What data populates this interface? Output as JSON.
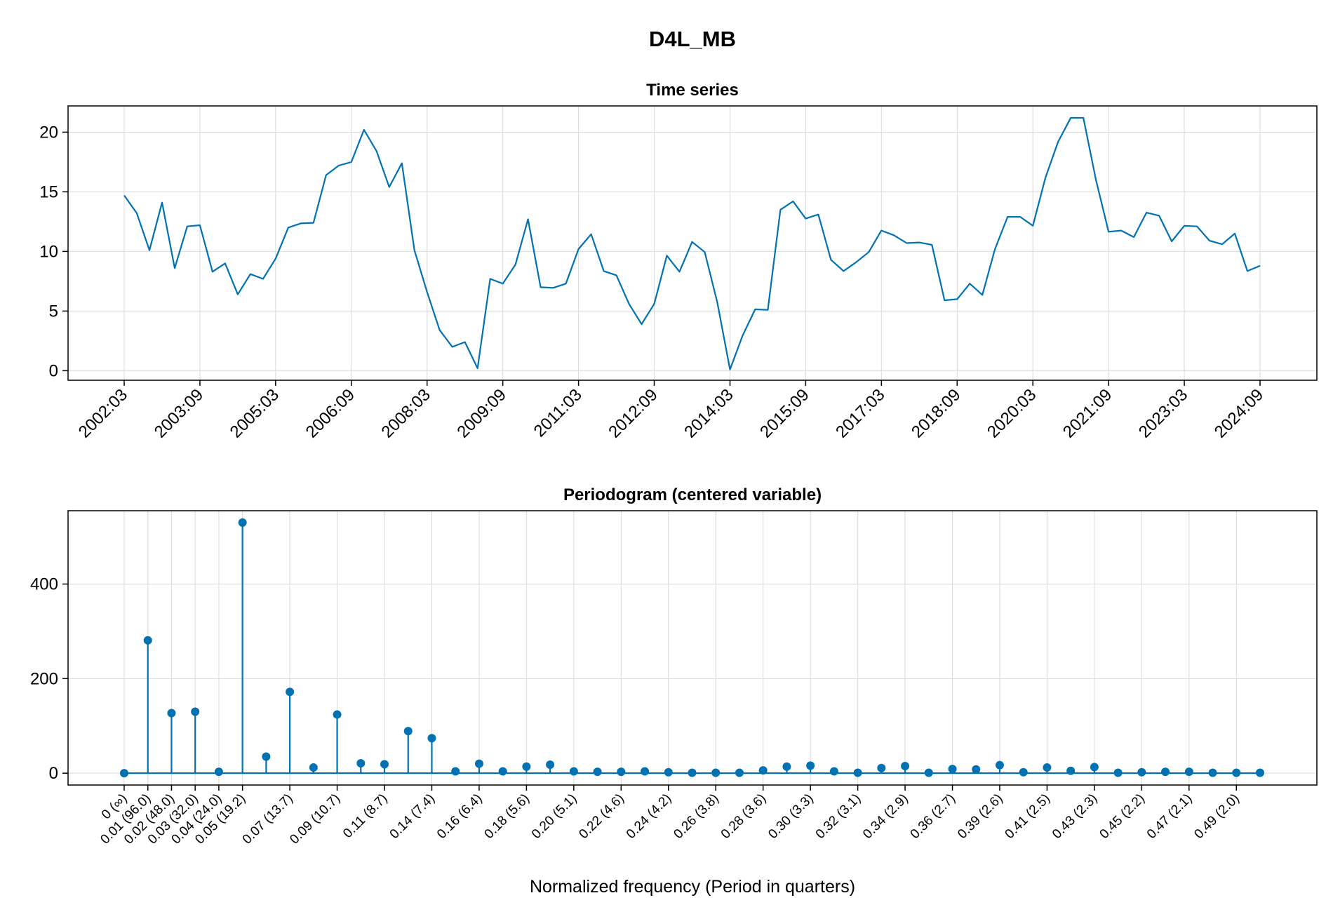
{
  "figure_title": "D4L_MB",
  "colors": {
    "series": "#0072b2",
    "grid": "#d9d9d9",
    "frame": "#000000"
  },
  "chart_data": [
    {
      "type": "line",
      "title": "Time series",
      "xlabel": "",
      "ylabel": "",
      "ylim": [
        -0.8,
        22.2
      ],
      "yticks": [
        0,
        5,
        10,
        15,
        20
      ],
      "grid": true,
      "legend": "none",
      "xticks": [
        "2002:03",
        "2003:09",
        "2005:03",
        "2006:09",
        "2008:03",
        "2009:09",
        "2011:03",
        "2012:09",
        "2014:03",
        "2015:09",
        "2017:03",
        "2018:09",
        "2020:03",
        "2021:09",
        "2023:03",
        "2024:09"
      ],
      "x_start": "2002:03",
      "x_frequency": "quarterly",
      "values": [
        14.7,
        13.2,
        10.1,
        14.1,
        8.6,
        12.1,
        12.2,
        8.3,
        9.0,
        6.4,
        8.1,
        7.7,
        9.4,
        12.0,
        12.35,
        12.4,
        16.4,
        17.2,
        17.5,
        20.2,
        18.4,
        15.4,
        17.4,
        10.1,
        6.6,
        3.4,
        2.0,
        2.4,
        0.2,
        7.7,
        7.3,
        8.9,
        12.7,
        7.0,
        6.95,
        7.3,
        10.2,
        11.45,
        8.35,
        8.0,
        5.6,
        3.9,
        5.6,
        9.65,
        8.3,
        10.8,
        9.95,
        5.7,
        0.1,
        2.95,
        5.15,
        5.1,
        13.5,
        14.2,
        12.75,
        13.1,
        9.3,
        8.35,
        9.1,
        9.95,
        11.75,
        11.35,
        10.7,
        10.75,
        10.55,
        5.9,
        6.0,
        7.3,
        6.35,
        10.2,
        12.9,
        12.9,
        12.15,
        16.2,
        19.2,
        21.2,
        21.2,
        16.0,
        11.65,
        11.75,
        11.2,
        13.25,
        13.0,
        10.85,
        12.15,
        12.1,
        10.9,
        10.6,
        11.5,
        8.35,
        8.8
      ]
    },
    {
      "type": "stem",
      "title": "Periodogram (centered variable)",
      "xlabel": "Normalized frequency (Period in quarters)",
      "ylabel": "",
      "ylim": [
        -25,
        555
      ],
      "yticks": [
        0,
        200,
        400
      ],
      "grid": true,
      "legend": "none",
      "xticks": [
        "0 (∞)",
        "0.01 (96.0)",
        "0.02 (48.0)",
        "0.03 (32.0)",
        "0.04 (24.0)",
        "0.05 (19.2)",
        "0.07 (13.7)",
        "0.09 (10.7)",
        "0.11 (8.7)",
        "0.14 (7.4)",
        "0.16 (6.4)",
        "0.18 (5.6)",
        "0.20 (5.1)",
        "0.22 (4.6)",
        "0.24 (4.2)",
        "0.26 (3.8)",
        "0.28 (3.6)",
        "0.30 (3.3)",
        "0.32 (3.1)",
        "0.34 (2.9)",
        "0.36 (2.7)",
        "0.39 (2.6)",
        "0.41 (2.5)",
        "0.43 (2.3)",
        "0.45 (2.2)",
        "0.47 (2.1)",
        "0.49 (2.0)"
      ],
      "xtick_index": [
        0,
        1,
        2,
        3,
        4,
        5,
        7,
        9,
        11,
        13,
        15,
        17,
        19,
        21,
        23,
        25,
        27,
        29,
        31,
        33,
        35,
        37,
        39,
        41,
        43,
        45,
        47
      ],
      "values": [
        0,
        281,
        127,
        130,
        3,
        530,
        35,
        172,
        12,
        124,
        21,
        19,
        89,
        74,
        4,
        20,
        4,
        14,
        18,
        4,
        3,
        3,
        4,
        2,
        1,
        1,
        1,
        6,
        14,
        16,
        4,
        1,
        11,
        15,
        1,
        9,
        8,
        17,
        2,
        12,
        5,
        13,
        1,
        2,
        3,
        3,
        1,
        1,
        1
      ]
    }
  ]
}
